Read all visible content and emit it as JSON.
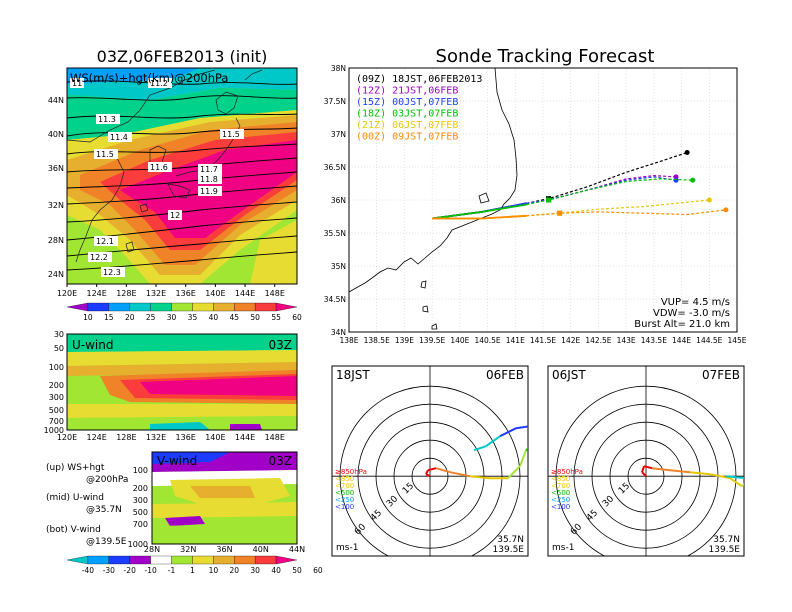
{
  "chart_data": [
    {
      "id": "map",
      "type": "heatmap",
      "title": "03Z,06FEB2013 (init)",
      "subtitle": "WS(m/s)+hgt(km)@200hPa",
      "x_ticks": [
        "120E",
        "124E",
        "128E",
        "132E",
        "136E",
        "140E",
        "144E",
        "148E"
      ],
      "y_ticks": [
        "44N",
        "40N",
        "36N",
        "32N",
        "28N",
        "24N"
      ],
      "contour_labels": [
        "11",
        "11.2",
        "11.3",
        "11.4",
        "11.5",
        "11.5",
        "11.6",
        "11.7",
        "11.8",
        "11.9",
        "12",
        "12.1",
        "12.2",
        "12.3"
      ],
      "colorbar": [
        "10",
        "15",
        "20",
        "25",
        "30",
        "35",
        "40",
        "45",
        "50",
        "55",
        "60"
      ]
    },
    {
      "id": "uwind",
      "type": "heatmap",
      "title": "U-wind",
      "time": "03Z",
      "x_ticks": [
        "120E",
        "124E",
        "128E",
        "132E",
        "136E",
        "140E",
        "144E",
        "148E"
      ],
      "y_ticks": [
        "30",
        "50",
        "100",
        "200",
        "300",
        "500",
        "700",
        "1000"
      ]
    },
    {
      "id": "vwind",
      "type": "heatmap",
      "title": "V-wind",
      "time": "03Z",
      "x_ticks": [
        "28N",
        "32N",
        "36N",
        "40N",
        "44N"
      ],
      "y_ticks": [
        "100",
        "200",
        "300",
        "500",
        "700",
        "1000"
      ],
      "colorbar": [
        "-40",
        "-30",
        "-20",
        "-10",
        "-1",
        "1",
        "10",
        "20",
        "30",
        "40",
        "50",
        "60"
      ]
    },
    {
      "id": "track",
      "type": "line",
      "title": "Sonde Tracking Forecast",
      "x_ticks": [
        "138E",
        "138.5E",
        "139E",
        "139.5E",
        "140E",
        "140.5E",
        "141E",
        "141.5E",
        "142E",
        "142.5E",
        "143E",
        "143.5E",
        "144E",
        "144.5E",
        "145E"
      ],
      "y_ticks": [
        "38N",
        "37.5N",
        "37N",
        "36.5N",
        "36N",
        "35.5N",
        "35N",
        "34.5N",
        "34N"
      ],
      "xlim": [
        138,
        145
      ],
      "ylim": [
        34,
        38
      ],
      "series": [
        {
          "name": "(09Z)  18JST,06FEB2013",
          "color": "#000000",
          "x": [
            139.5,
            140.4,
            141.2,
            141.6,
            142.3,
            143,
            143.6,
            144.1
          ],
          "y": [
            35.72,
            35.82,
            35.95,
            36.02,
            36.2,
            36.42,
            36.58,
            36.72
          ]
        },
        {
          "name": "(12Z)  21JST,06FEB",
          "color": "#a000c8",
          "x": [
            139.5,
            140.4,
            141.2,
            141.6,
            142.3,
            143,
            143.5,
            143.9
          ],
          "y": [
            35.72,
            35.82,
            35.95,
            36.0,
            36.15,
            36.32,
            36.37,
            36.35
          ]
        },
        {
          "name": "(15Z)  00JST,07FEB",
          "color": "#1e3cff",
          "x": [
            139.5,
            140.4,
            141.2,
            141.6,
            142.3,
            143,
            143.5,
            143.9
          ],
          "y": [
            35.72,
            35.82,
            35.95,
            36.0,
            36.15,
            36.3,
            36.35,
            36.3
          ]
        },
        {
          "name": "(18Z)  03JST,07FEB",
          "color": "#00c000",
          "x": [
            139.5,
            140.4,
            141.2,
            141.6,
            142.3,
            143,
            143.6,
            144.2
          ],
          "y": [
            35.72,
            35.82,
            35.93,
            36.0,
            36.15,
            36.28,
            36.32,
            36.3
          ]
        },
        {
          "name": "(21Z)  06JST,07FEB",
          "color": "#e6c800",
          "x": [
            139.5,
            140.4,
            141.2,
            141.8,
            142.5,
            143.3,
            143.9,
            144.5
          ],
          "y": [
            35.72,
            35.72,
            35.76,
            35.8,
            35.86,
            35.9,
            35.95,
            36.0
          ]
        },
        {
          "name": "(00Z)  09JST,07FEB",
          "color": "#ff8c00",
          "x": [
            139.5,
            140.4,
            141.2,
            141.8,
            142.5,
            143.3,
            144.1,
            144.8
          ],
          "y": [
            35.72,
            35.72,
            35.76,
            35.8,
            35.82,
            35.8,
            35.78,
            35.85
          ]
        }
      ],
      "annotations": [
        "VUP= 4.5 m/s",
        "VDW= -3.0 m/s",
        "Burst Alt= 21.0 km"
      ]
    },
    {
      "id": "hodo1",
      "type": "line",
      "time_label": "18JST",
      "date_label": "06FEB",
      "ring_labels": [
        "15",
        "30",
        "45",
        "60"
      ],
      "legend": [
        "≥850hPa",
        "<850",
        "<700",
        "<500",
        "<250",
        "<100"
      ],
      "location": [
        "35.7N",
        "139.5E"
      ],
      "units": "ms-1"
    },
    {
      "id": "hodo2",
      "type": "line",
      "time_label": "06JST",
      "date_label": "07FEB",
      "ring_labels": [
        "15",
        "30",
        "45",
        "60"
      ],
      "legend": [
        "≥850hPa",
        "<850",
        "<700",
        "<500",
        "<250",
        "<100"
      ],
      "location": [
        "35.7N",
        "139.5E"
      ],
      "units": "ms-1"
    }
  ],
  "legend_notes": {
    "up": "(up) WS+hgt",
    "up2": "@200hPa",
    "mid": "(mid) U-wind",
    "mid2": "@35.7N",
    "bot": "(bot) V-wind",
    "bot2": "@139.5E"
  },
  "palette": {
    "ws": [
      "#a000c8",
      "#1e3cff",
      "#00a0ff",
      "#00c8c8",
      "#00d28c",
      "#a0e632",
      "#e6dc32",
      "#e6af2d",
      "#f08228",
      "#fa3c3c",
      "#f00082"
    ],
    "v": [
      "#00c8c8",
      "#00a0ff",
      "#1e3cff",
      "#a000c8",
      "#ffffff",
      "#a0e632",
      "#e6dc32",
      "#e6af2d",
      "#f08228",
      "#fa3c3c",
      "#f00082"
    ],
    "legend_levels": [
      "#fa0000",
      "#e6c800",
      "#e6c800",
      "#00c000",
      "#00a0ff",
      "#1e3cff"
    ]
  }
}
